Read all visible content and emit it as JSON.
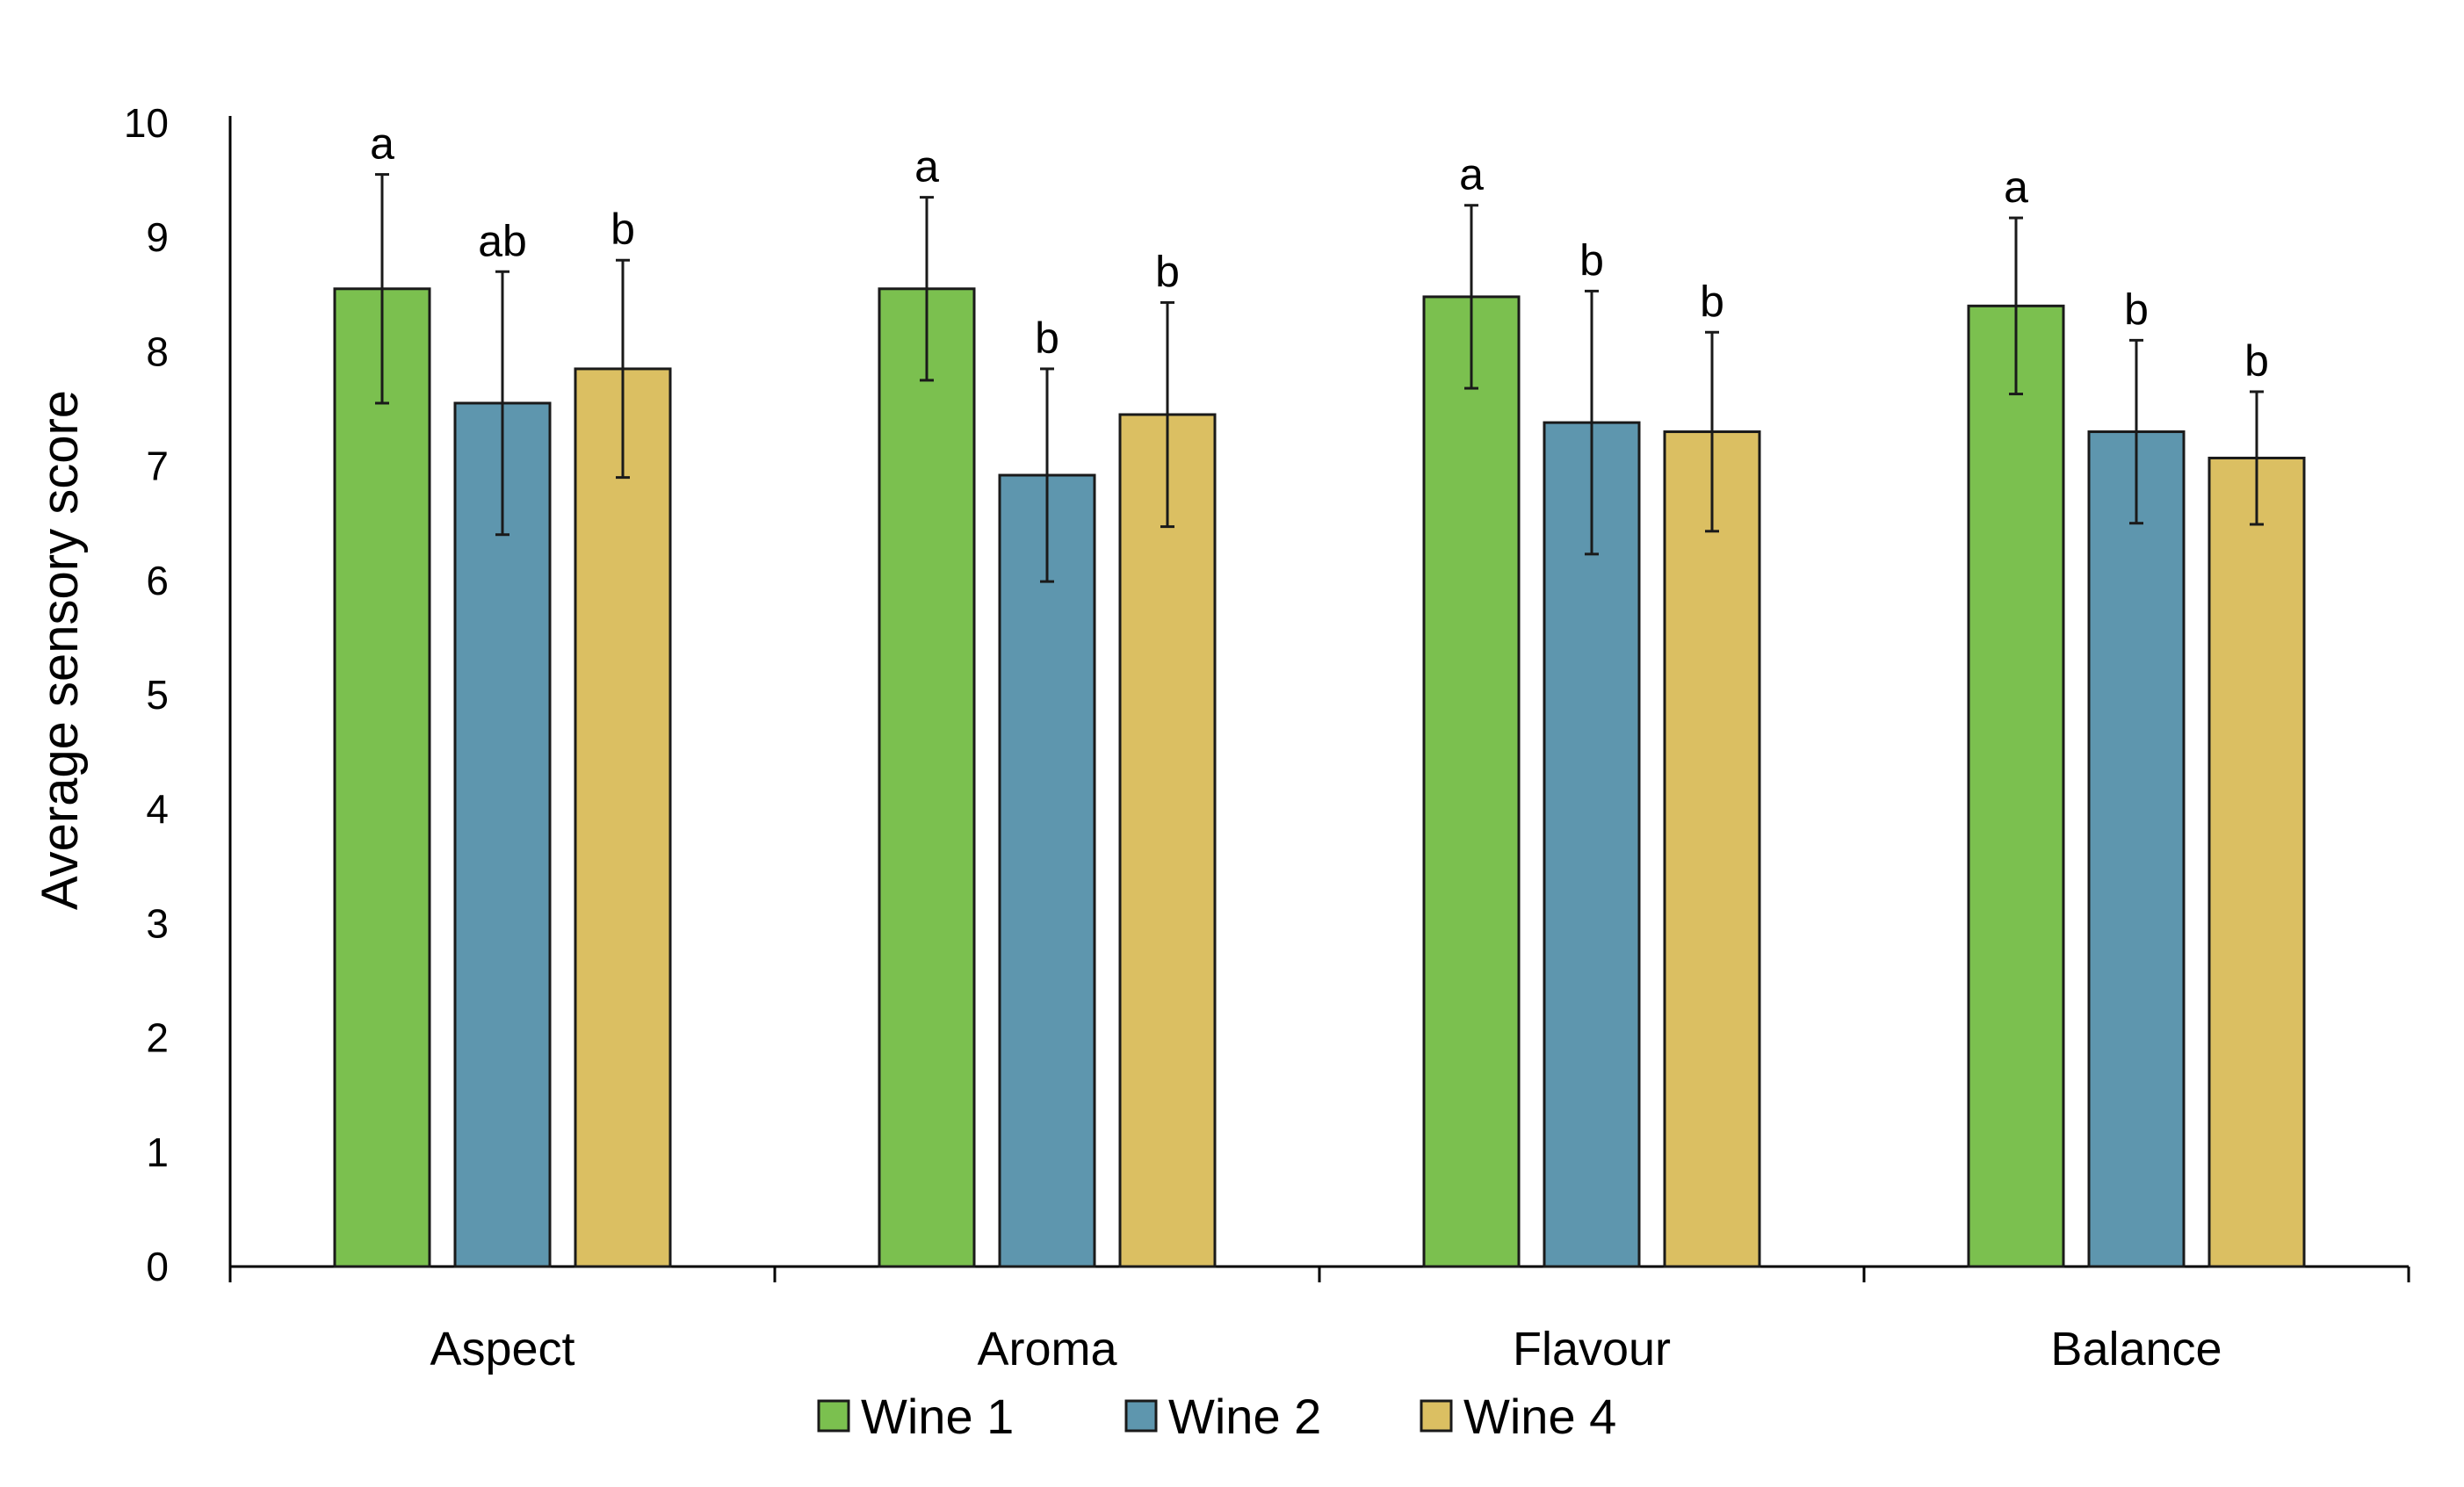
{
  "chart_data": {
    "type": "bar",
    "title": "",
    "xlabel": "",
    "ylabel": "Average sensory score",
    "ylim": [
      0,
      10
    ],
    "yticks": [
      "0",
      "1",
      "2",
      "3",
      "4",
      "5",
      "6",
      "7",
      "8",
      "9",
      "10"
    ],
    "categories": [
      "Aspect",
      "Aroma",
      "Flavour",
      "Balance"
    ],
    "series": [
      {
        "name": "Wine 1",
        "color": "#7bc04f",
        "values": [
          8.55,
          8.55,
          8.48,
          8.4
        ],
        "errors": [
          1.0,
          0.8,
          0.8,
          0.77
        ],
        "letters": [
          "a",
          "a",
          "a",
          "a"
        ]
      },
      {
        "name": "Wine 2",
        "color": "#5e96ae",
        "values": [
          7.55,
          6.92,
          7.38,
          7.3
        ],
        "errors": [
          1.15,
          0.93,
          1.15,
          0.8
        ],
        "letters": [
          "ab",
          "b",
          "b",
          "b"
        ]
      },
      {
        "name": "Wine 4",
        "color": "#dbbf62",
        "values": [
          7.85,
          7.45,
          7.3,
          7.07
        ],
        "errors": [
          0.95,
          0.98,
          0.87,
          0.58
        ],
        "letters": [
          "b",
          "b",
          "b",
          "b"
        ]
      }
    ],
    "legend_position": "bottom-center",
    "grid": false
  }
}
